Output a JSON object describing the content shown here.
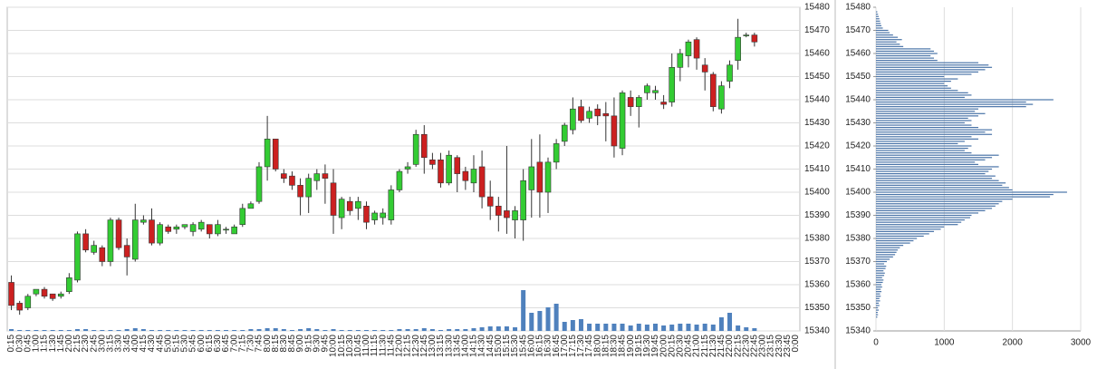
{
  "chart_data": [
    {
      "type": "candlestick",
      "categories": [
        "0:15",
        "0:30",
        "0:45",
        "1:00",
        "1:15",
        "1:30",
        "1:45",
        "2:00",
        "2:15",
        "2:30",
        "2:45",
        "3:00",
        "3:15",
        "3:30",
        "3:45",
        "4:00",
        "4:15",
        "4:30",
        "4:45",
        "5:00",
        "5:15",
        "5:30",
        "5:45",
        "6:00",
        "6:15",
        "6:30",
        "6:45",
        "7:00",
        "7:15",
        "7:30",
        "7:45",
        "8:00",
        "8:15",
        "8:30",
        "8:45",
        "9:00",
        "9:15",
        "9:30",
        "9:45",
        "10:00",
        "10:15",
        "10:30",
        "10:45",
        "11:00",
        "11:15",
        "11:30",
        "11:45",
        "12:00",
        "12:15",
        "12:30",
        "12:45",
        "13:00",
        "13:15",
        "13:30",
        "13:45",
        "14:00",
        "14:15",
        "14:30",
        "14:45",
        "15:00",
        "15:15",
        "15:30",
        "15:45",
        "16:00",
        "16:15",
        "16:30",
        "16:45",
        "17:00",
        "17:15",
        "17:30",
        "17:45",
        "18:00",
        "18:15",
        "18:30",
        "18:45",
        "19:00",
        "19:15",
        "19:30",
        "19:45",
        "20:00",
        "20:15",
        "20:30",
        "20:45",
        "21:00",
        "21:15",
        "21:30",
        "21:45",
        "22:00",
        "22:15",
        "22:30",
        "22:45",
        "23:00",
        "23:15",
        "23:30",
        "23:45",
        "0:00"
      ],
      "open": [
        15361,
        15352,
        15350,
        15356,
        15358,
        15356,
        15355,
        15357,
        15362,
        15382,
        15374,
        15376,
        15370,
        15388,
        15377,
        15371,
        15387,
        15388,
        15378,
        15385,
        15384,
        15385,
        15383,
        15384,
        15386,
        15382,
        15384,
        15382,
        15386,
        15393,
        15396,
        15411,
        15423,
        15408,
        15407,
        15403,
        15398,
        15405,
        15408,
        15404,
        15389,
        15396,
        15393,
        15394,
        15388,
        15389,
        15388,
        15401,
        15410,
        15412,
        15425,
        15414,
        15414,
        15404,
        15415,
        15409,
        15404,
        15411,
        15398,
        15394,
        15392,
        15388,
        15388,
        15401,
        15413,
        15400,
        15413,
        15422,
        15427,
        15437,
        15432,
        15436,
        15434,
        15433,
        15419,
        15441,
        15437,
        15443,
        15443,
        15439,
        15439,
        15454,
        15459,
        15466,
        15455,
        15451,
        15436,
        15448,
        15457,
        15468,
        15468,
        null,
        null,
        null,
        null,
        null
      ],
      "high": [
        15364,
        15353,
        15356,
        15358,
        15359,
        15356,
        15357,
        15365,
        15383,
        15384,
        15379,
        15377,
        15389,
        15389,
        15380,
        15395,
        15390,
        15393,
        15387,
        15386,
        15386,
        15386,
        15387,
        15388,
        15386,
        15388,
        15385,
        15386,
        15395,
        15396,
        15413,
        15433,
        15423,
        15410,
        15409,
        15406,
        15408,
        15410,
        15412,
        15410,
        15398,
        15398,
        15398,
        15396,
        15392,
        15393,
        15403,
        15410,
        15413,
        15427,
        15429,
        15417,
        15417,
        15418,
        15416,
        15411,
        15416,
        15418,
        15405,
        15398,
        15420,
        15394,
        15410,
        15423,
        15425,
        15415,
        15423,
        15430,
        15441,
        15440,
        15437,
        15438,
        15439,
        15441,
        15444,
        15444,
        15442,
        15447,
        15446,
        15442,
        15460,
        15462,
        15466,
        15467,
        15458,
        15452,
        15448,
        15457,
        15475,
        15469,
        15469,
        null,
        null,
        null,
        null,
        null
      ],
      "low": [
        15349,
        15347,
        15349,
        15355,
        15354,
        15353,
        15354,
        15356,
        15361,
        15374,
        15373,
        15368,
        15368,
        15375,
        15364,
        15370,
        15386,
        15377,
        15377,
        15382,
        15382,
        15384,
        15381,
        15383,
        15380,
        15381,
        15382,
        15382,
        15385,
        15393,
        15395,
        15405,
        15409,
        15404,
        15401,
        15390,
        15391,
        15401,
        15395,
        15382,
        15384,
        15390,
        15388,
        15384,
        15386,
        15386,
        15386,
        15400,
        15408,
        15411,
        15408,
        15410,
        15402,
        15403,
        15400,
        15401,
        15400,
        15393,
        15388,
        15383,
        15382,
        15380,
        15379,
        15389,
        15389,
        15391,
        15410,
        15420,
        15425,
        15430,
        15430,
        15429,
        15422,
        15415,
        15416,
        15433,
        15428,
        15440,
        15440,
        15436,
        15437,
        15448,
        15454,
        15453,
        15444,
        15435,
        15434,
        15445,
        15453,
        15467,
        15463,
        null,
        null,
        null,
        null,
        null
      ],
      "close": [
        15351,
        15349,
        15355,
        15358,
        15355,
        15354,
        15356,
        15363,
        15382,
        15375,
        15377,
        15370,
        15388,
        15376,
        15372,
        15388,
        15388,
        15378,
        15386,
        15383,
        15385,
        15386,
        15386,
        15387,
        15382,
        15386,
        15384,
        15385,
        15393,
        15395,
        15411,
        15423,
        15410,
        15406,
        15403,
        15398,
        15406,
        15408,
        15406,
        15390,
        15397,
        15392,
        15396,
        15387,
        15391,
        15391,
        15401,
        15409,
        15411,
        15425,
        15415,
        15412,
        15404,
        15416,
        15408,
        15405,
        15410,
        15398,
        15394,
        15390,
        15389,
        15392,
        15405,
        15411,
        15400,
        15413,
        15421,
        15429,
        15436,
        15431,
        15435,
        15433,
        15433,
        15420,
        15443,
        15437,
        15441,
        15446,
        15444,
        15438,
        15454,
        15460,
        15465,
        15458,
        15452,
        15437,
        15446,
        15455,
        15467,
        15468,
        15465,
        null,
        null,
        null,
        null,
        null
      ],
      "volume": [
        2,
        1,
        1,
        1,
        1,
        1,
        1,
        1,
        2,
        2,
        1,
        1,
        1,
        1,
        2,
        3,
        2,
        1,
        1,
        1,
        1,
        1,
        1,
        1,
        1,
        1,
        1,
        1,
        1,
        2,
        2,
        3,
        3,
        2,
        1,
        2,
        3,
        2,
        1,
        2,
        1,
        1,
        1,
        1,
        1,
        1,
        1,
        2,
        2,
        2,
        3,
        2,
        1,
        2,
        2,
        2,
        3,
        4,
        5,
        5,
        5,
        4,
        45,
        20,
        22,
        26,
        30,
        10,
        12,
        13,
        8,
        8,
        8,
        8,
        8,
        6,
        8,
        7,
        8,
        6,
        7,
        8,
        8,
        7,
        8,
        7,
        15,
        20,
        6,
        4,
        3,
        null,
        null,
        null,
        null,
        null
      ],
      "up_color": "#33cc33",
      "down_color": "#cc2020",
      "volume_color": "#4f81bd",
      "ylim": [
        15340,
        15480
      ],
      "yticks": [
        15340,
        15350,
        15360,
        15370,
        15380,
        15390,
        15400,
        15410,
        15420,
        15430,
        15440,
        15450,
        15460,
        15470,
        15480
      ],
      "grid": true
    },
    {
      "type": "volume-profile",
      "y": [
        15346,
        15347,
        15348,
        15349,
        15350,
        15351,
        15352,
        15353,
        15354,
        15355,
        15356,
        15357,
        15358,
        15359,
        15360,
        15361,
        15362,
        15363,
        15364,
        15365,
        15366,
        15367,
        15368,
        15369,
        15370,
        15371,
        15372,
        15373,
        15374,
        15375,
        15376,
        15377,
        15378,
        15379,
        15380,
        15381,
        15382,
        15383,
        15384,
        15385,
        15386,
        15387,
        15388,
        15389,
        15390,
        15391,
        15392,
        15393,
        15394,
        15395,
        15396,
        15397,
        15398,
        15399,
        15400,
        15401,
        15402,
        15403,
        15404,
        15405,
        15406,
        15407,
        15408,
        15409,
        15410,
        15411,
        15412,
        15413,
        15414,
        15415,
        15416,
        15417,
        15418,
        15419,
        15420,
        15421,
        15422,
        15423,
        15424,
        15425,
        15426,
        15427,
        15428,
        15429,
        15430,
        15431,
        15432,
        15433,
        15434,
        15435,
        15436,
        15437,
        15438,
        15439,
        15440,
        15441,
        15442,
        15443,
        15444,
        15445,
        15446,
        15447,
        15448,
        15449,
        15450,
        15451,
        15452,
        15453,
        15454,
        15455,
        15456,
        15457,
        15458,
        15459,
        15460,
        15461,
        15462,
        15463,
        15464,
        15465,
        15466,
        15467,
        15468,
        15469,
        15470,
        15471,
        15472,
        15473,
        15474,
        15475,
        15476,
        15477,
        15478
      ],
      "values": [
        20,
        30,
        25,
        40,
        30,
        50,
        40,
        60,
        50,
        70,
        60,
        80,
        70,
        90,
        80,
        100,
        110,
        90,
        120,
        130,
        110,
        140,
        150,
        120,
        160,
        200,
        250,
        280,
        300,
        320,
        350,
        400,
        500,
        550,
        600,
        700,
        780,
        850,
        950,
        1000,
        1200,
        1250,
        1300,
        1380,
        1400,
        1500,
        1600,
        1700,
        1750,
        1800,
        1850,
        2000,
        2550,
        2600,
        2800,
        2000,
        1950,
        1850,
        1900,
        1800,
        1700,
        1750,
        1600,
        1650,
        1700,
        1800,
        1500,
        1450,
        1600,
        1700,
        1800,
        1400,
        1300,
        1350,
        1400,
        1200,
        1300,
        1500,
        1400,
        1700,
        1600,
        1700,
        1500,
        1400,
        1300,
        1400,
        1350,
        1500,
        1600,
        1450,
        1500,
        2200,
        2300,
        2200,
        2600,
        1300,
        1400,
        1350,
        1200,
        1100,
        1050,
        1000,
        1100,
        1200,
        1000,
        1400,
        1500,
        1600,
        1700,
        1650,
        1500,
        900,
        850,
        800,
        900,
        850,
        800,
        400,
        350,
        300,
        380,
        320,
        250,
        200,
        180,
        100,
        80,
        70,
        60,
        50,
        40,
        30,
        20
      ],
      "color": "#4a74a8",
      "xlim": [
        0,
        3000
      ],
      "xticks": [
        0,
        1000,
        2000,
        3000
      ],
      "ylim": [
        15340,
        15480
      ],
      "yticks": [
        15340,
        15350,
        15360,
        15370,
        15380,
        15390,
        15400,
        15410,
        15420,
        15430,
        15440,
        15450,
        15460,
        15470,
        15480
      ],
      "grid": true
    }
  ]
}
